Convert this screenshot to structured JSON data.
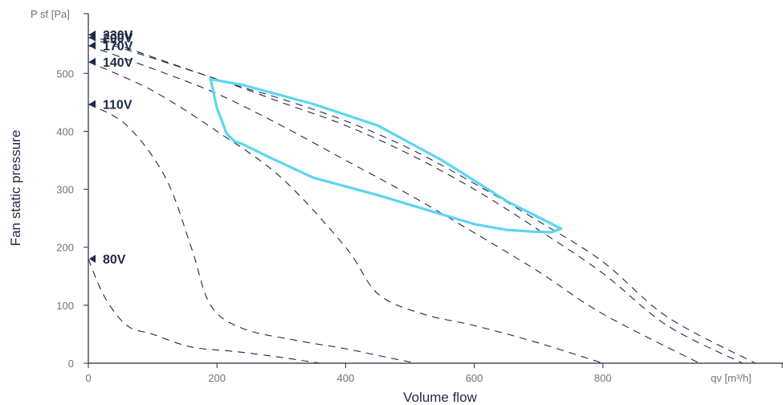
{
  "chart_data": {
    "type": "line",
    "ylabel": "Fan static pressure",
    "xlabel": "Volume flow",
    "y_unit": "P sf [Pa]",
    "x_unit": "qv [m³/h]",
    "xlim": [
      0,
      1080
    ],
    "ylim": [
      0,
      603
    ],
    "x_ticks": [
      0,
      200,
      400,
      600,
      800
    ],
    "y_ticks": [
      0,
      100,
      200,
      300,
      400,
      500
    ],
    "grid": false,
    "colors": {
      "axis": "#1f2a44",
      "curve": "#1f2a44",
      "envelope": "#5bd6f2"
    },
    "series": [
      {
        "name": "230V",
        "style": "dashed",
        "points": [
          [
            0,
            567
          ],
          [
            200,
            490
          ],
          [
            300,
            456
          ],
          [
            400,
            418
          ],
          [
            500,
            370
          ],
          [
            600,
            310
          ],
          [
            700,
            245
          ],
          [
            800,
            175
          ],
          [
            900,
            80
          ],
          [
            1037,
            0
          ]
        ]
      },
      {
        "name": "200V",
        "style": "dashed",
        "points": [
          [
            0,
            562
          ],
          [
            200,
            490
          ],
          [
            300,
            450
          ],
          [
            400,
            410
          ],
          [
            500,
            360
          ],
          [
            600,
            300
          ],
          [
            700,
            230
          ],
          [
            800,
            155
          ],
          [
            900,
            65
          ],
          [
            1017,
            0
          ]
        ]
      },
      {
        "name": "170V",
        "style": "dashed",
        "points": [
          [
            0,
            548
          ],
          [
            100,
            508
          ],
          [
            200,
            465
          ],
          [
            300,
            410
          ],
          [
            400,
            350
          ],
          [
            500,
            290
          ],
          [
            600,
            225
          ],
          [
            700,
            158
          ],
          [
            800,
            85
          ],
          [
            950,
            0
          ]
        ]
      },
      {
        "name": "140V",
        "style": "dashed",
        "points": [
          [
            0,
            520
          ],
          [
            100,
            470
          ],
          [
            200,
            400
          ],
          [
            300,
            320
          ],
          [
            400,
            200
          ],
          [
            450,
            120
          ],
          [
            520,
            85
          ],
          [
            600,
            65
          ],
          [
            700,
            35
          ],
          [
            800,
            0
          ]
        ]
      },
      {
        "name": "110V",
        "style": "dashed",
        "points": [
          [
            0,
            447
          ],
          [
            60,
            410
          ],
          [
            120,
            320
          ],
          [
            160,
            200
          ],
          [
            190,
            100
          ],
          [
            240,
            60
          ],
          [
            320,
            40
          ],
          [
            400,
            25
          ],
          [
            465,
            10
          ],
          [
            510,
            0
          ]
        ]
      },
      {
        "name": "80V",
        "style": "dashed",
        "points": [
          [
            0,
            180
          ],
          [
            25,
            115
          ],
          [
            60,
            65
          ],
          [
            100,
            50
          ],
          [
            160,
            28
          ],
          [
            230,
            20
          ],
          [
            300,
            10
          ],
          [
            360,
            0
          ]
        ]
      }
    ],
    "envelope": [
      [
        190,
        490
      ],
      [
        240,
        480
      ],
      [
        350,
        447
      ],
      [
        450,
        410
      ],
      [
        550,
        350
      ],
      [
        650,
        280
      ],
      [
        735,
        232
      ],
      [
        720,
        226
      ],
      [
        690,
        227
      ],
      [
        650,
        230
      ],
      [
        600,
        240
      ],
      [
        450,
        290
      ],
      [
        350,
        320
      ],
      [
        280,
        356
      ],
      [
        240,
        378
      ],
      [
        228,
        382
      ],
      [
        215,
        396
      ],
      [
        200,
        440
      ],
      [
        190,
        490
      ]
    ],
    "labels": [
      {
        "text": "230V",
        "y": 567
      },
      {
        "text": "200V",
        "y": 562
      },
      {
        "text": "170V",
        "y": 548
      },
      {
        "text": "140V",
        "y": 520
      },
      {
        "text": "110V",
        "y": 447
      },
      {
        "text": "80V",
        "y": 180
      }
    ]
  }
}
